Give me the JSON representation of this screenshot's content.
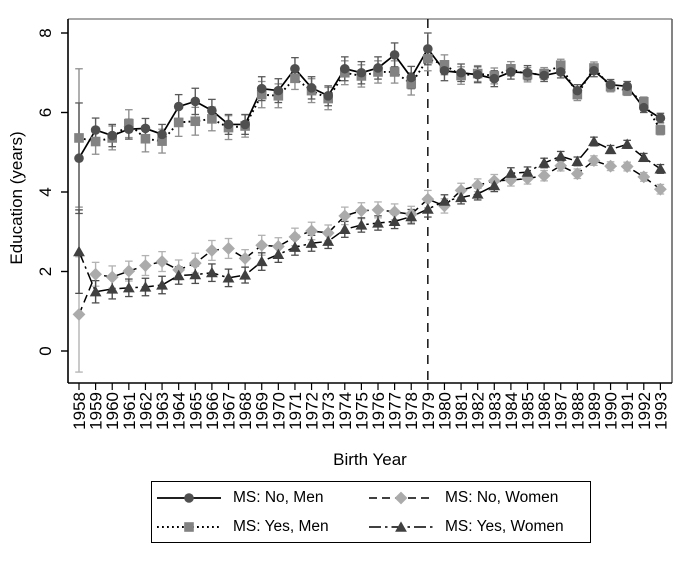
{
  "figure": {
    "background": "#ffffff"
  },
  "chart_data": {
    "type": "line",
    "title": "",
    "xlabel": "Birth Year",
    "ylabel": "Education (years)",
    "x": [
      1958,
      1959,
      1960,
      1961,
      1962,
      1963,
      1964,
      1965,
      1966,
      1967,
      1968,
      1969,
      1970,
      1971,
      1972,
      1973,
      1974,
      1975,
      1976,
      1977,
      1978,
      1979,
      1980,
      1981,
      1982,
      1983,
      1984,
      1985,
      1986,
      1987,
      1988,
      1989,
      1990,
      1991,
      1992,
      1993
    ],
    "ylim": [
      -0.8,
      8.4
    ],
    "yticks": [
      0,
      2,
      4,
      6,
      8
    ],
    "grid": false,
    "legend_position": "bottom-center",
    "reference_line": {
      "x": 1979,
      "style": "dashed",
      "color": "#000000"
    },
    "frame": {
      "axis_color": "#000000",
      "top_color": "#8c8c8c",
      "right_color": "#5c5c5c"
    },
    "series": [
      {
        "name": "MS: No, Men",
        "marker": "circle",
        "line_style": "solid",
        "color": "#4f4f4f",
        "error_color": "#5a5a5a",
        "values": [
          4.85,
          5.56,
          5.42,
          5.58,
          5.6,
          5.45,
          6.15,
          6.28,
          6.05,
          5.7,
          5.7,
          6.6,
          6.55,
          7.1,
          6.62,
          6.42,
          7.1,
          7.0,
          7.12,
          7.45,
          6.88,
          7.6,
          7.05,
          7.0,
          6.95,
          6.85,
          7.02,
          7.0,
          6.93,
          7.02,
          6.55,
          7.05,
          6.7,
          6.66,
          6.12,
          5.86
        ],
        "errors": [
          1.39,
          0.3,
          0.28,
          0.25,
          0.25,
          0.25,
          0.3,
          0.33,
          0.28,
          0.25,
          0.25,
          0.3,
          0.3,
          0.28,
          0.28,
          0.25,
          0.3,
          0.28,
          0.28,
          0.3,
          0.28,
          0.4,
          0.25,
          0.22,
          0.2,
          0.2,
          0.18,
          0.18,
          0.15,
          0.15,
          0.15,
          0.15,
          0.13,
          0.12,
          0.12,
          0.12
        ]
      },
      {
        "name": "MS: Yes, Men",
        "marker": "square",
        "line_style": "dotted",
        "color": "#828282",
        "error_color": "#8f8f8f",
        "values": [
          5.36,
          5.27,
          5.36,
          5.72,
          5.34,
          5.28,
          5.75,
          5.78,
          5.84,
          5.62,
          5.66,
          6.45,
          6.42,
          6.86,
          6.55,
          6.35,
          7.0,
          6.92,
          7.02,
          7.02,
          6.72,
          7.35,
          7.2,
          6.93,
          6.98,
          6.92,
          7.1,
          6.95,
          6.98,
          7.19,
          6.45,
          7.12,
          6.65,
          6.55,
          6.27,
          5.56
        ],
        "errors": [
          1.74,
          0.32,
          0.3,
          0.35,
          0.33,
          0.3,
          0.35,
          0.35,
          0.3,
          0.3,
          0.28,
          0.33,
          0.3,
          0.28,
          0.3,
          0.28,
          0.3,
          0.28,
          0.28,
          0.28,
          0.28,
          0.3,
          0.25,
          0.22,
          0.2,
          0.2,
          0.18,
          0.18,
          0.15,
          0.15,
          0.15,
          0.15,
          0.13,
          0.12,
          0.12,
          0.12
        ]
      },
      {
        "name": "MS: No, Women",
        "marker": "diamond",
        "line_style": "dashed",
        "color": "#ababab",
        "error_color": "#b3b3b3",
        "values": [
          0.92,
          1.93,
          1.86,
          2.01,
          2.15,
          2.25,
          2.04,
          2.21,
          2.53,
          2.58,
          2.33,
          2.66,
          2.63,
          2.87,
          3.02,
          2.97,
          3.4,
          3.53,
          3.55,
          3.5,
          3.44,
          3.82,
          3.65,
          4.04,
          4.17,
          4.28,
          4.3,
          4.34,
          4.41,
          4.66,
          4.46,
          4.79,
          4.65,
          4.64,
          4.38,
          4.07
        ],
        "errors": [
          1.45,
          0.3,
          0.28,
          0.25,
          0.25,
          0.25,
          0.25,
          0.25,
          0.25,
          0.25,
          0.22,
          0.25,
          0.22,
          0.22,
          0.22,
          0.2,
          0.22,
          0.2,
          0.2,
          0.2,
          0.2,
          0.22,
          0.18,
          0.18,
          0.16,
          0.16,
          0.15,
          0.14,
          0.13,
          0.13,
          0.12,
          0.12,
          0.11,
          0.11,
          0.11,
          0.12
        ]
      },
      {
        "name": "MS: Yes, Women",
        "marker": "triangle",
        "line_style": "dashdot",
        "color": "#404040",
        "error_color": "#4d4d4d",
        "values": [
          2.5,
          1.49,
          1.56,
          1.59,
          1.61,
          1.66,
          1.9,
          1.92,
          1.97,
          1.84,
          1.91,
          2.25,
          2.43,
          2.61,
          2.71,
          2.76,
          3.06,
          3.17,
          3.22,
          3.26,
          3.38,
          3.57,
          3.77,
          3.86,
          3.95,
          4.16,
          4.47,
          4.5,
          4.73,
          4.9,
          4.77,
          5.27,
          5.07,
          5.2,
          4.87,
          4.58
        ],
        "errors": [
          1.05,
          0.28,
          0.25,
          0.22,
          0.22,
          0.22,
          0.22,
          0.22,
          0.22,
          0.22,
          0.2,
          0.22,
          0.2,
          0.2,
          0.2,
          0.18,
          0.2,
          0.18,
          0.18,
          0.18,
          0.18,
          0.2,
          0.16,
          0.16,
          0.15,
          0.15,
          0.14,
          0.13,
          0.12,
          0.12,
          0.11,
          0.11,
          0.1,
          0.1,
          0.1,
          0.11
        ]
      }
    ]
  }
}
